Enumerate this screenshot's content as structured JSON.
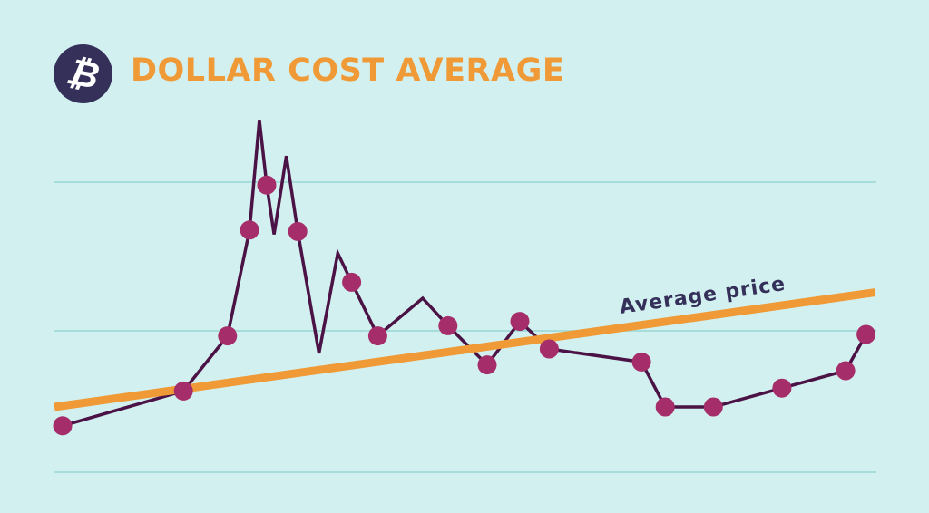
{
  "header": {
    "title": "DOLLAR COST AVERAGE",
    "logo_icon": "bitcoin-icon",
    "logo_glyph": "₿"
  },
  "colors": {
    "background": "#d3f0f0",
    "gridline": "#a6dcd9",
    "price_line": "#4a1245",
    "purchase_dot": "#a52d69",
    "average_line": "#ef9a36",
    "title": "#ef9a36",
    "logo": "#34305a",
    "label": "#34305a"
  },
  "chart_data": {
    "type": "line",
    "title": "DOLLAR COST AVERAGE",
    "xlabel": "",
    "ylabel": "",
    "xlim": [
      0,
      100
    ],
    "ylim": [
      0,
      2.4
    ],
    "grid": true,
    "gridlines_y": [
      0,
      1,
      2
    ],
    "tick_labels": "none",
    "series": [
      {
        "role": "price",
        "points": [
          {
            "x": 1.0,
            "y": 0.32,
            "buy": true
          },
          {
            "x": 7.8,
            "y": 0.43,
            "buy": false
          },
          {
            "x": 15.8,
            "y": 0.56,
            "buy": true
          },
          {
            "x": 21.2,
            "y": 0.94,
            "buy": true
          },
          {
            "x": 23.9,
            "y": 1.67,
            "buy": true
          },
          {
            "x": 25.1,
            "y": 2.43,
            "buy": false
          },
          {
            "x": 26.0,
            "y": 1.98,
            "buy": true
          },
          {
            "x": 26.9,
            "y": 1.64,
            "buy": false
          },
          {
            "x": 28.4,
            "y": 2.18,
            "buy": false
          },
          {
            "x": 29.8,
            "y": 1.66,
            "buy": true
          },
          {
            "x": 32.4,
            "y": 0.82,
            "buy": false
          },
          {
            "x": 34.7,
            "y": 1.51,
            "buy": false
          },
          {
            "x": 36.4,
            "y": 1.31,
            "buy": true
          },
          {
            "x": 39.6,
            "y": 0.94,
            "buy": true
          },
          {
            "x": 45.1,
            "y": 1.2,
            "buy": false
          },
          {
            "x": 48.2,
            "y": 1.01,
            "buy": true
          },
          {
            "x": 53.0,
            "y": 0.74,
            "buy": true
          },
          {
            "x": 57.0,
            "y": 1.04,
            "buy": true
          },
          {
            "x": 60.6,
            "y": 0.85,
            "buy": true
          },
          {
            "x": 71.9,
            "y": 0.76,
            "buy": true
          },
          {
            "x": 74.8,
            "y": 0.45,
            "buy": true
          },
          {
            "x": 80.7,
            "y": 0.45,
            "buy": true
          },
          {
            "x": 89.1,
            "y": 0.58,
            "buy": true
          },
          {
            "x": 96.9,
            "y": 0.7,
            "buy": true
          },
          {
            "x": 99.4,
            "y": 0.95,
            "buy": true
          }
        ]
      },
      {
        "name": "Average price",
        "role": "average",
        "points": [
          {
            "x": 0,
            "y": 0.45
          },
          {
            "x": 100.5,
            "y": 1.24
          }
        ]
      }
    ],
    "annotations": [
      {
        "text": "Average price",
        "attached_to": "average"
      }
    ]
  }
}
